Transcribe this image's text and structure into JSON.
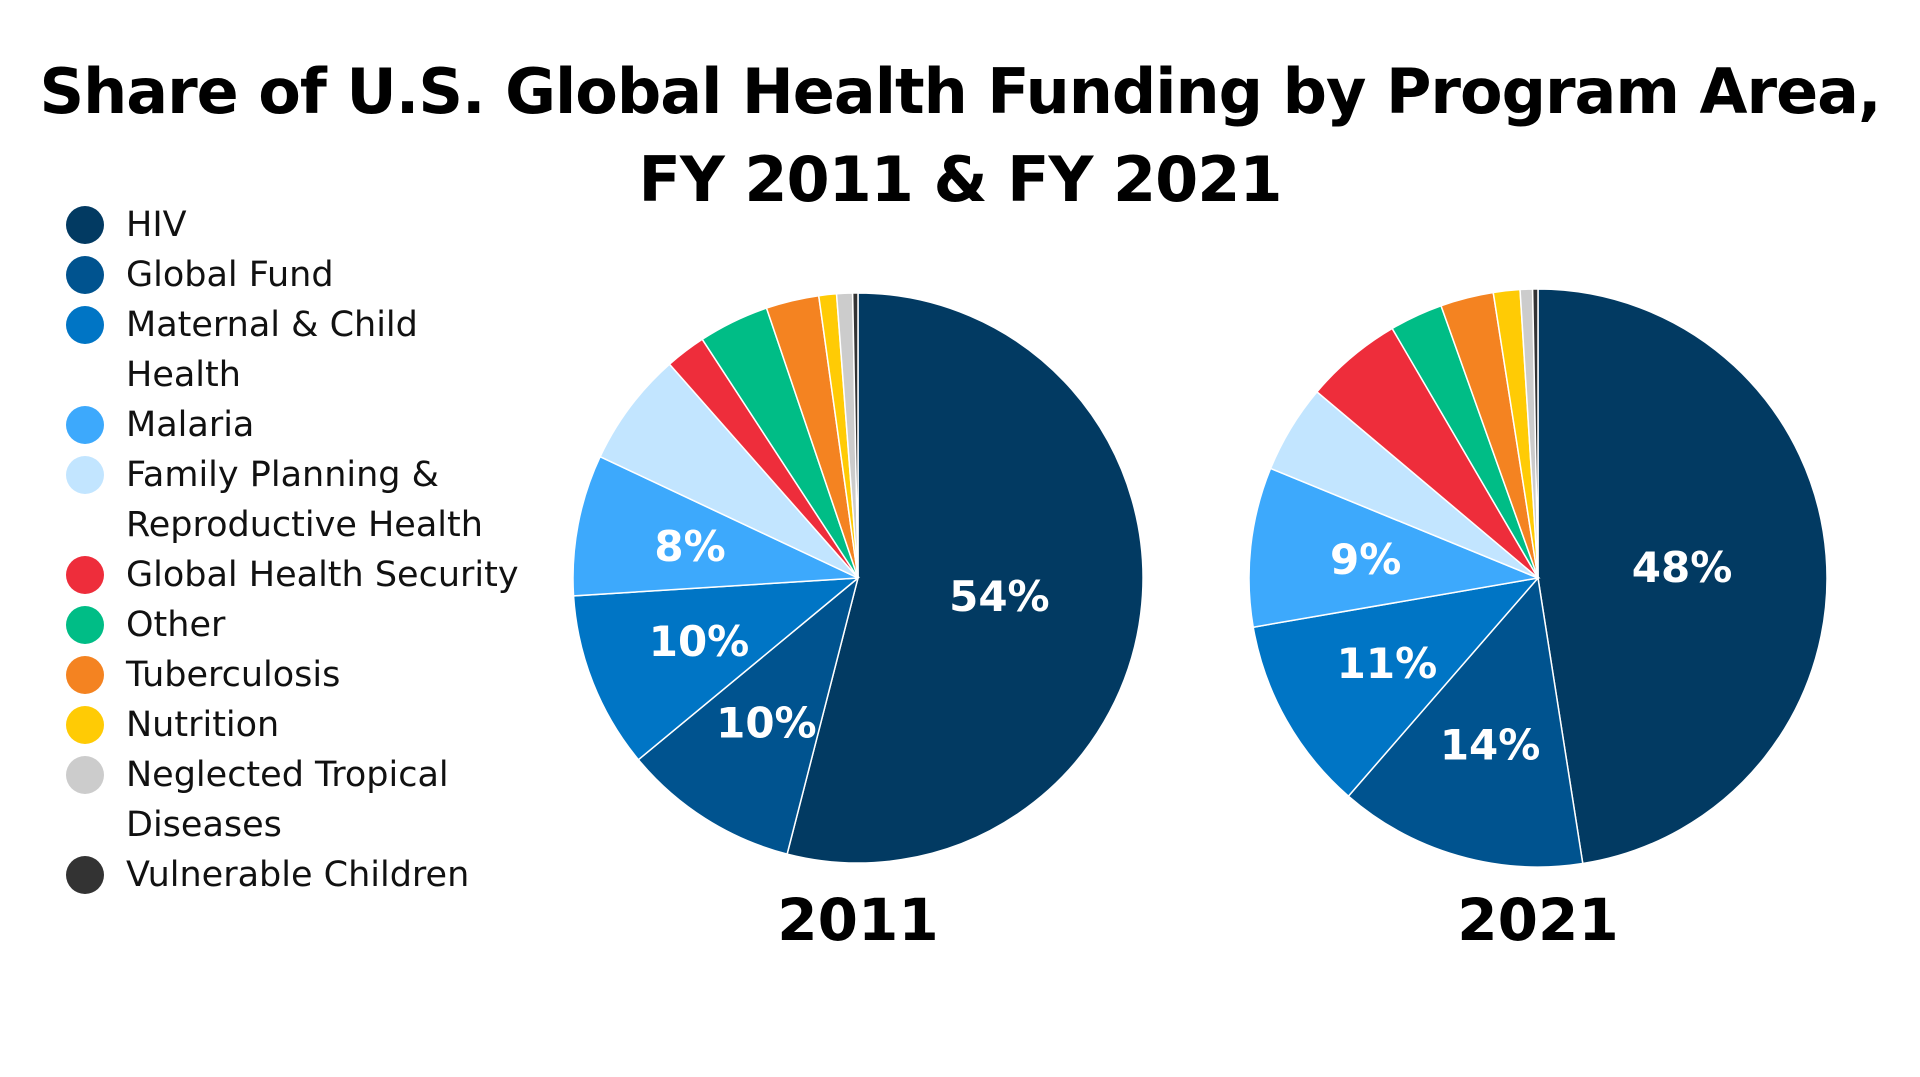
{
  "chart_data": [
    {
      "type": "pie",
      "title": "Share of U.S. Global Health Funding by Program Area, FY 2011 & FY 2021",
      "label": "2011",
      "categories": [
        "HIV",
        "Global Fund",
        "Maternal & Child Health",
        "Malaria",
        "Family Planning & Reproductive Health",
        "Global Health Security",
        "Other",
        "Tuberculosis",
        "Nutrition",
        "Neglected Tropical Diseases",
        "Vulnerable Children"
      ],
      "values": [
        54,
        10,
        10,
        8,
        6.5,
        2.3,
        4,
        3,
        1,
        0.9,
        0.3
      ],
      "data_labels": [
        "54%",
        "10%",
        "10%",
        "8%",
        "",
        "",
        "",
        "",
        "",
        "",
        ""
      ],
      "start": "12 o'clock, clockwise"
    },
    {
      "type": "pie",
      "label": "2021",
      "categories": [
        "HIV",
        "Global Fund",
        "Maternal & Child Health",
        "Malaria",
        "Family Planning & Reproductive Health",
        "Global Health Security",
        "Other",
        "Tuberculosis",
        "Nutrition",
        "Neglected Tropical Diseases",
        "Vulnerable Children"
      ],
      "values": [
        48,
        14,
        11,
        9,
        5,
        5.5,
        3,
        3,
        1.5,
        0.7,
        0.3
      ],
      "data_labels": [
        "48%",
        "14%",
        "11%",
        "9%",
        "",
        "",
        "",
        "",
        "",
        "",
        ""
      ],
      "start": "12 o'clock, clockwise"
    }
  ],
  "title_lines": [
    "Share of U.S. Global Health Funding by Program Area,",
    "FY 2011 & FY 2021"
  ],
  "legend": [
    {
      "label": "HIV",
      "color": "#023A62"
    },
    {
      "label": "Global Fund",
      "color": "#00538F"
    },
    {
      "label": "Maternal & Child Health",
      "color": "#0075C5"
    },
    {
      "label": "Malaria",
      "color": "#3DA9FC"
    },
    {
      "label": "Family Planning & Reproductive Health",
      "color": "#C2E5FF"
    },
    {
      "label": "Global Health Security",
      "color": "#EE2D3B"
    },
    {
      "label": "Other",
      "color": "#00BD86"
    },
    {
      "label": "Tuberculosis",
      "color": "#F48321"
    },
    {
      "label": "Nutrition",
      "color": "#FFCB05"
    },
    {
      "label": "Neglected Tropical Diseases",
      "color": "#CCCCCC"
    },
    {
      "label": "Vulnerable Children",
      "color": "#333333"
    }
  ]
}
